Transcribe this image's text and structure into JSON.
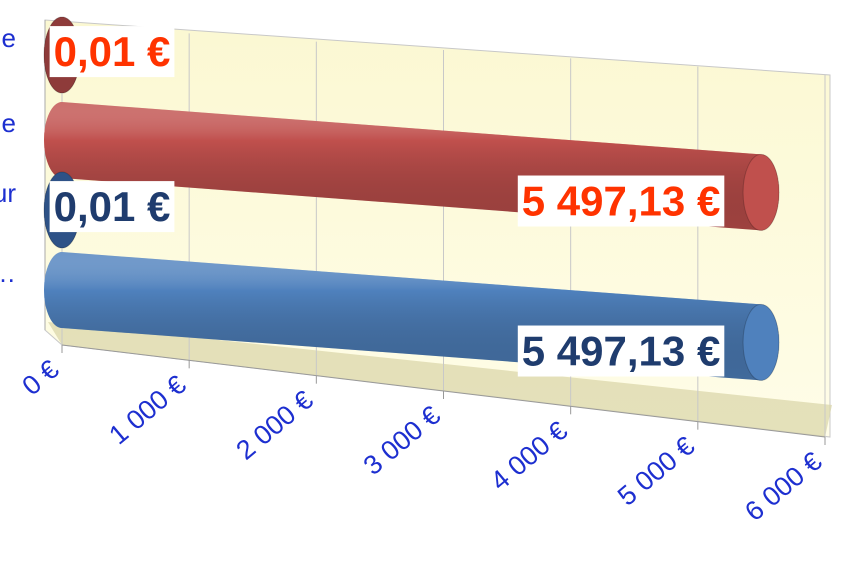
{
  "chart_data": {
    "type": "bar3d",
    "categories": [
      "e",
      "e",
      "ur",
      "et…"
    ],
    "values": [
      0.01,
      5497.13,
      0.01,
      5497.13
    ],
    "value_labels": [
      "0,01 €",
      "5 497,13 €",
      "0,01 €",
      "5 497,13 €"
    ],
    "colors": [
      "#8e3b3a",
      "#c0504d",
      "#2e5287",
      "#4f81bd"
    ],
    "label_colors": [
      "#ff3300",
      "#ff3300",
      "#1f3c6e",
      "#1f3c6e"
    ],
    "xlim": [
      0,
      6000
    ],
    "xticks": [
      {
        "value": 0,
        "label": "0 €"
      },
      {
        "value": 1000,
        "label": "1 000 €"
      },
      {
        "value": 2000,
        "label": "2 000 €"
      },
      {
        "value": 3000,
        "label": "3 000 €"
      },
      {
        "value": 4000,
        "label": "4 000 €"
      },
      {
        "value": 5000,
        "label": "5 000 €"
      },
      {
        "value": 6000,
        "label": "6 000 €"
      }
    ],
    "grid": true
  }
}
